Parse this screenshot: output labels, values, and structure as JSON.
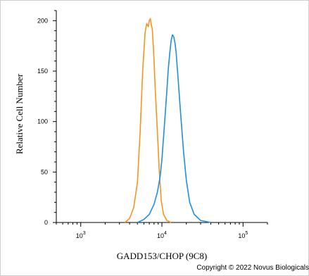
{
  "chart_data": {
    "type": "line",
    "xlabel": "GADD153/CHOP (9C8)",
    "ylabel": "Relative Cell Number",
    "x_scale": "log",
    "xlim": [
      500,
      200000
    ],
    "ylim": [
      0,
      210
    ],
    "x_ticks": [
      {
        "value": 1000,
        "base": "10",
        "exp": "3"
      },
      {
        "value": 10000,
        "base": "10",
        "exp": "4"
      },
      {
        "value": 100000,
        "base": "10",
        "exp": "5"
      }
    ],
    "y_ticks": [
      0,
      50,
      100,
      150,
      200
    ],
    "grid": false,
    "series": [
      {
        "color": "#f7941d",
        "x": [
          3500,
          4000,
          4500,
          5000,
          5400,
          5800,
          6200,
          6500,
          6800,
          7000,
          7200,
          7400,
          7600,
          7900,
          8300,
          8800,
          9300,
          9800,
          10500,
          11500,
          13000
        ],
        "y": [
          0,
          4,
          15,
          40,
          90,
          150,
          188,
          197,
          194,
          200,
          202,
          196,
          192,
          170,
          130,
          90,
          50,
          22,
          8,
          2,
          0
        ]
      },
      {
        "color": "#1e8fe0",
        "x": [
          5000,
          6000,
          7000,
          8000,
          8800,
          9500,
          10000,
          10500,
          11000,
          11500,
          12000,
          12500,
          13000,
          13500,
          14000,
          14500,
          15000,
          16000,
          17000,
          18500,
          20000,
          22000,
          25000,
          30000,
          40000
        ],
        "y": [
          0,
          3,
          8,
          18,
          30,
          45,
          62,
          85,
          108,
          130,
          152,
          168,
          180,
          186,
          184,
          178,
          168,
          138,
          108,
          70,
          42,
          20,
          8,
          2,
          0
        ]
      }
    ]
  },
  "copyright": "Copyright © 2022 Novus Biologicals"
}
